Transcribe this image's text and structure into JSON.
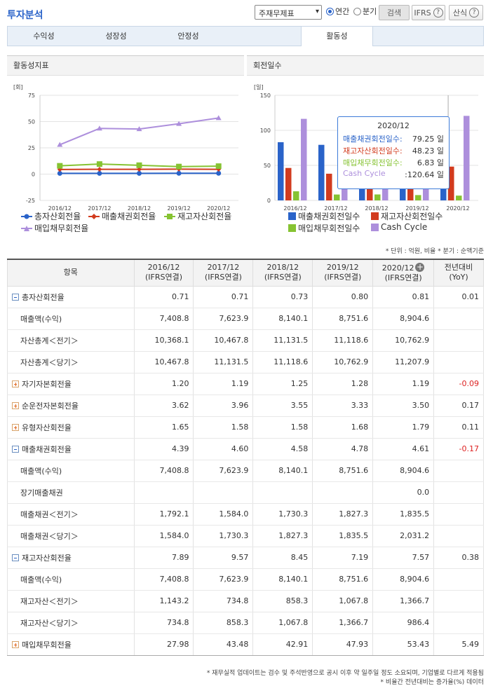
{
  "header": {
    "title": "투자분석",
    "select_value": "주재무제표",
    "radio_annual": "연간",
    "radio_quarter": "분기",
    "search_label": "검색",
    "ifrs_label": "IFRS",
    "formula_label": "산식"
  },
  "tabs": [
    "수익성",
    "성장성",
    "안정성",
    "활동성"
  ],
  "left_chart": {
    "panel_title": "활동성지표",
    "unit": "[회]",
    "legend": [
      "총자산회전율",
      "매출채권회전율",
      "재고자산회전율",
      "매입채무회전율"
    ]
  },
  "right_chart": {
    "panel_title": "회전일수",
    "unit": "[일]",
    "legend": [
      "매출채권회전일수",
      "재고자산회전일수",
      "매입채무회전일수",
      "Cash Cycle"
    ]
  },
  "colors": {
    "blue": "#2a63c9",
    "red": "#d23b1e",
    "green": "#86c332",
    "purple": "#ad8fdc"
  },
  "chart_data": [
    {
      "type": "line",
      "title": "활동성지표",
      "ylabel": "[회]",
      "ylim": [
        -25,
        75
      ],
      "yticks": [
        -25,
        0,
        25,
        50,
        75
      ],
      "x": [
        "2016/12",
        "2017/12",
        "2018/12",
        "2019/12",
        "2020/12"
      ],
      "series": [
        {
          "name": "총자산회전율",
          "color": "#2a63c9",
          "values": [
            0.71,
            0.71,
            0.73,
            0.8,
            0.81
          ]
        },
        {
          "name": "매출채권회전율",
          "color": "#d23b1e",
          "values": [
            4.39,
            4.6,
            4.58,
            4.78,
            4.61
          ]
        },
        {
          "name": "재고자산회전율",
          "color": "#86c332",
          "values": [
            7.89,
            9.57,
            8.45,
            7.19,
            7.57
          ]
        },
        {
          "name": "매입채무회전율",
          "color": "#ad8fdc",
          "values": [
            27.98,
            43.48,
            42.91,
            47.93,
            53.43
          ]
        }
      ],
      "grid": true,
      "legend_position": "bottom"
    },
    {
      "type": "bar",
      "title": "회전일수",
      "ylabel": "[일]",
      "ylim": [
        0,
        150
      ],
      "yticks": [
        0,
        50,
        100,
        150
      ],
      "categories": [
        "2016/12",
        "2017/12",
        "2018/12",
        "2019/12",
        "2020/12"
      ],
      "series": [
        {
          "name": "매출채권회전일수",
          "color": "#2a63c9",
          "values": [
            83.1,
            79.3,
            79.7,
            76.4,
            79.25
          ]
        },
        {
          "name": "재고자산회전일수",
          "color": "#d23b1e",
          "values": [
            46.3,
            38.1,
            43.2,
            50.8,
            48.23
          ]
        },
        {
          "name": "매입채무회전일수",
          "color": "#86c332",
          "values": [
            13.0,
            8.4,
            8.5,
            7.6,
            6.83
          ]
        },
        {
          "name": "Cash Cycle",
          "color": "#ad8fdc",
          "values": [
            116.4,
            109.0,
            114.4,
            119.6,
            120.64
          ]
        }
      ],
      "grid": true,
      "legend_position": "bottom",
      "tooltip": {
        "title": "2020/12",
        "rows": [
          {
            "label": "매출채권회전일수:",
            "value": "79.25",
            "unit": "일",
            "color": "#2a63c9"
          },
          {
            "label": "재고자산회전일수:",
            "value": "48.23",
            "unit": "일",
            "color": "#d23b1e"
          },
          {
            "label": "매입채무회전일수:",
            "value": "6.83",
            "unit": "일",
            "color": "#86c332"
          },
          {
            "label": "Cash Cycle",
            "value": ":120.64",
            "unit": "일",
            "color": "#ad8fdc"
          }
        ]
      }
    }
  ],
  "table": {
    "note_top": "* 단위 : 억원, 비율   * 분기 : 순액기준",
    "headers": [
      "항목",
      "2016/12",
      "(IFRS연결)",
      "2017/12",
      "(IFRS연결)",
      "2018/12",
      "(IFRS연결)",
      "2019/12",
      "(IFRS연결)",
      "2020/12",
      "(IFRS연결)",
      "전년대비",
      "(YoY)"
    ],
    "rows": [
      {
        "label": "총자산회전율",
        "toggle": "minus",
        "sub": false,
        "values": [
          "0.71",
          "0.71",
          "0.73",
          "0.80",
          "0.81",
          "0.01"
        ],
        "neg": false
      },
      {
        "label": "매출액(수익)",
        "toggle": "",
        "sub": true,
        "values": [
          "7,408.8",
          "7,623.9",
          "8,140.1",
          "8,751.6",
          "8,904.6",
          ""
        ],
        "neg": false
      },
      {
        "label": "자산총계＜전기＞",
        "toggle": "",
        "sub": true,
        "values": [
          "10,368.1",
          "10,467.8",
          "11,131.5",
          "11,118.6",
          "10,762.9",
          ""
        ],
        "neg": false
      },
      {
        "label": "자산총계＜당기＞",
        "toggle": "",
        "sub": true,
        "values": [
          "10,467.8",
          "11,131.5",
          "11,118.6",
          "10,762.9",
          "11,207.9",
          ""
        ],
        "neg": false
      },
      {
        "label": "자기자본회전율",
        "toggle": "plus",
        "sub": false,
        "values": [
          "1.20",
          "1.19",
          "1.25",
          "1.28",
          "1.19",
          "-0.09"
        ],
        "neg": true
      },
      {
        "label": "순운전자본회전율",
        "toggle": "plus",
        "sub": false,
        "values": [
          "3.62",
          "3.96",
          "3.55",
          "3.33",
          "3.50",
          "0.17"
        ],
        "neg": false
      },
      {
        "label": "유형자산회전율",
        "toggle": "plus",
        "sub": false,
        "values": [
          "1.65",
          "1.58",
          "1.58",
          "1.68",
          "1.79",
          "0.11"
        ],
        "neg": false
      },
      {
        "label": "매출채권회전율",
        "toggle": "minus",
        "sub": false,
        "values": [
          "4.39",
          "4.60",
          "4.58",
          "4.78",
          "4.61",
          "-0.17"
        ],
        "neg": true
      },
      {
        "label": "매출액(수익)",
        "toggle": "",
        "sub": true,
        "values": [
          "7,408.8",
          "7,623.9",
          "8,140.1",
          "8,751.6",
          "8,904.6",
          ""
        ],
        "neg": false
      },
      {
        "label": "장기매출채권",
        "toggle": "",
        "sub": true,
        "values": [
          "",
          "",
          "",
          "",
          "0.0",
          ""
        ],
        "neg": false
      },
      {
        "label": "매출채권＜전기＞",
        "toggle": "",
        "sub": true,
        "values": [
          "1,792.1",
          "1,584.0",
          "1,730.3",
          "1,827.3",
          "1,835.5",
          ""
        ],
        "neg": false
      },
      {
        "label": "매출채권＜당기＞",
        "toggle": "",
        "sub": true,
        "values": [
          "1,584.0",
          "1,730.3",
          "1,827.3",
          "1,835.5",
          "2,031.2",
          ""
        ],
        "neg": false
      },
      {
        "label": "재고자산회전율",
        "toggle": "minus",
        "sub": false,
        "values": [
          "7.89",
          "9.57",
          "8.45",
          "7.19",
          "7.57",
          "0.38"
        ],
        "neg": false
      },
      {
        "label": "매출액(수익)",
        "toggle": "",
        "sub": true,
        "values": [
          "7,408.8",
          "7,623.9",
          "8,140.1",
          "8,751.6",
          "8,904.6",
          ""
        ],
        "neg": false
      },
      {
        "label": "재고자산＜전기＞",
        "toggle": "",
        "sub": true,
        "values": [
          "1,143.2",
          "734.8",
          "858.3",
          "1,067.8",
          "1,366.7",
          ""
        ],
        "neg": false
      },
      {
        "label": "재고자산＜당기＞",
        "toggle": "",
        "sub": true,
        "values": [
          "734.8",
          "858.3",
          "1,067.8",
          "1,366.7",
          "986.4",
          ""
        ],
        "neg": false
      },
      {
        "label": "매입채무회전율",
        "toggle": "plus",
        "sub": false,
        "values": [
          "27.98",
          "43.48",
          "42.91",
          "47.93",
          "53.43",
          "5.49"
        ],
        "neg": false
      }
    ],
    "footnotes": [
      "* 재무실적 업데이트는 검수 및 주석반영으로 공시 이후 약 일주일 정도 소요되며, 기업별로 다르게 적용됨",
      "* 비율간 전년대비는 증가율(%) 데이터"
    ]
  }
}
